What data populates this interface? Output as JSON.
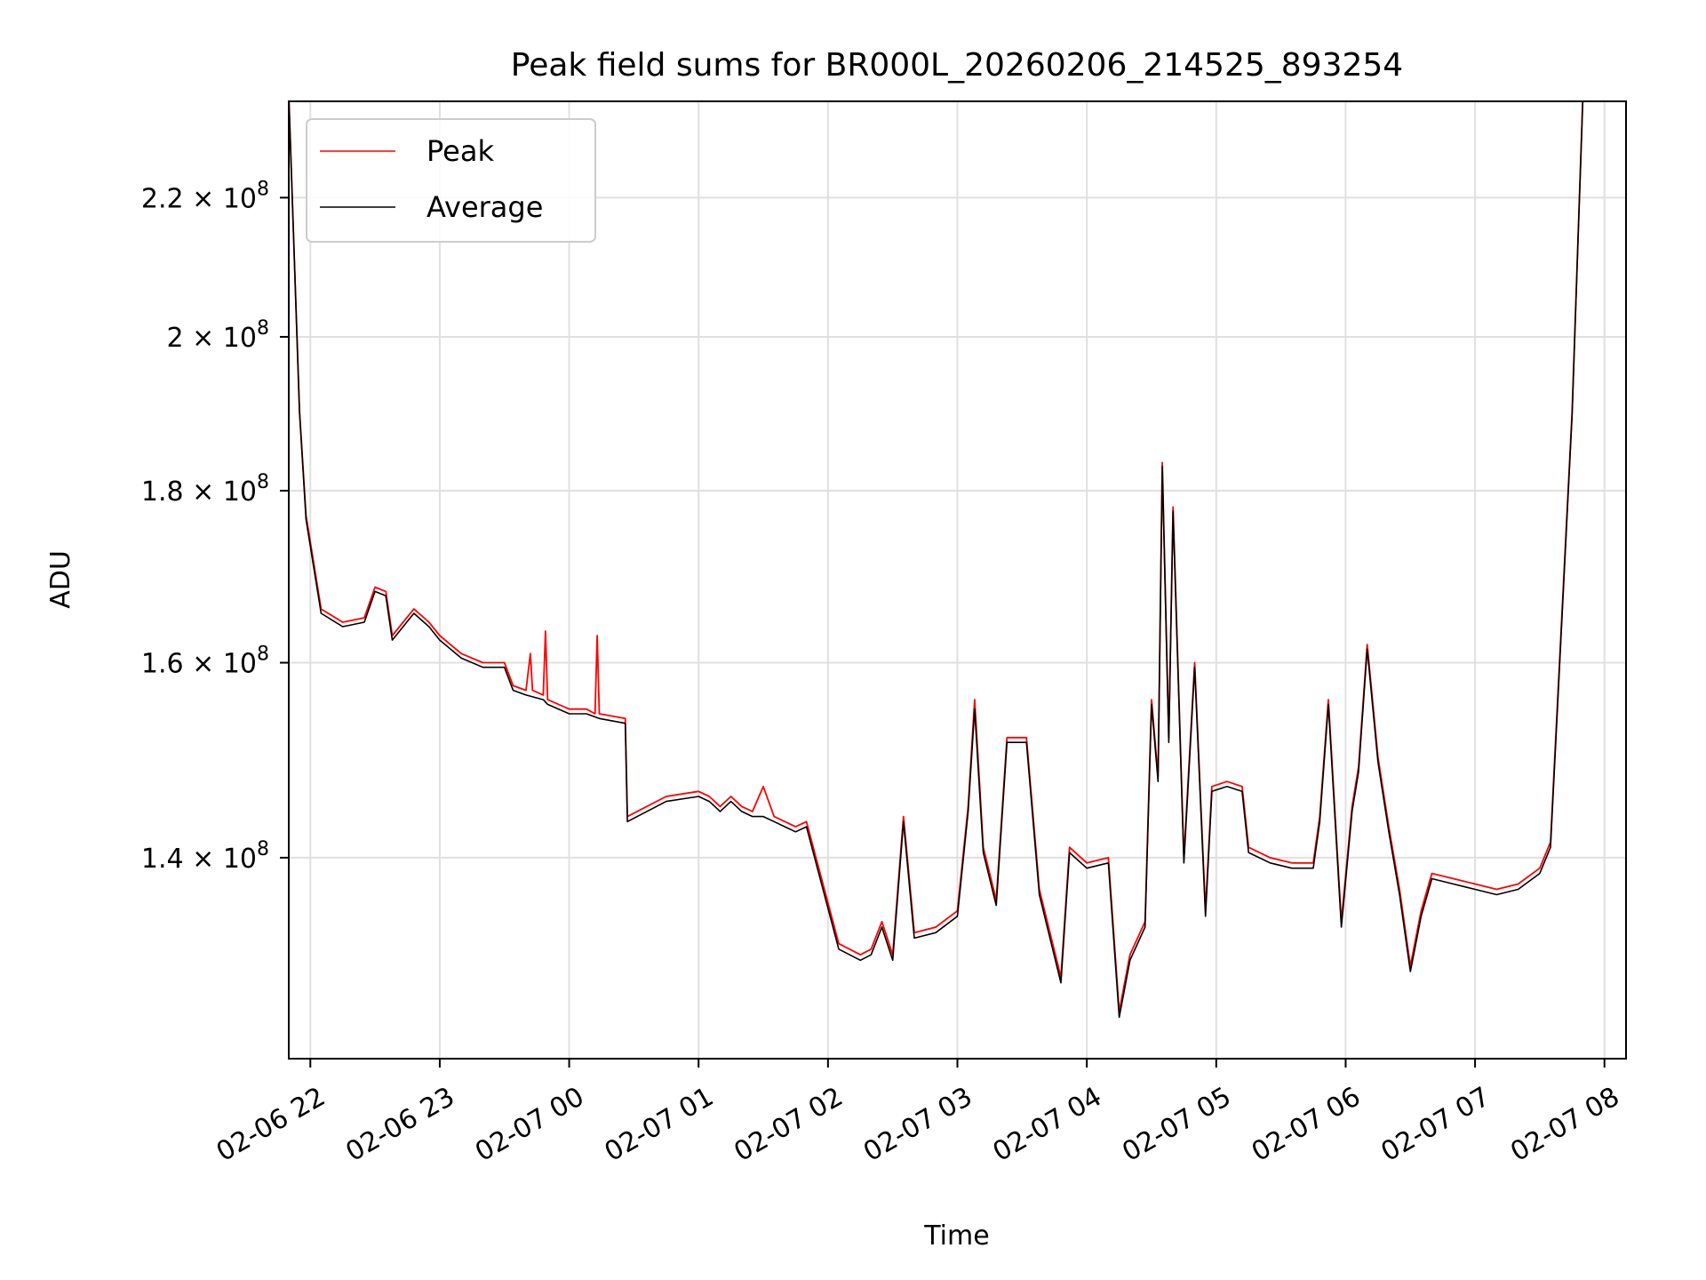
{
  "chart_data": {
    "type": "line",
    "title": "Peak field sums for BR000L_20260206_214525_893254",
    "xlabel": "Time",
    "ylabel": "ADU",
    "yscale": "log",
    "grid": true,
    "legend_placement": "top-left",
    "x_tick_labels": [
      "02-06 22",
      "02-06 23",
      "02-07 00",
      "02-07 01",
      "02-07 02",
      "02-07 03",
      "02-07 04",
      "02-07 05",
      "02-07 06",
      "02-07 07",
      "02-07 08"
    ],
    "x_ticks": [
      "2026-02-06 22:00",
      "2026-02-06 23:00",
      "2026-02-07 00:00",
      "2026-02-07 01:00",
      "2026-02-07 02:00",
      "2026-02-07 03:00",
      "2026-02-07 04:00",
      "2026-02-07 05:00",
      "2026-02-07 06:00",
      "2026-02-07 07:00",
      "2026-02-07 08:00"
    ],
    "xlim": [
      "2026-02-06 21:50",
      "2026-02-07 08:10"
    ],
    "y_ticks": [
      {
        "value": 140000000,
        "mantissa": "1.4",
        "base": "10",
        "exp": "8"
      },
      {
        "value": 160000000,
        "mantissa": "1.6",
        "base": "10",
        "exp": "8"
      },
      {
        "value": 180000000,
        "mantissa": "1.8",
        "base": "10",
        "exp": "8"
      },
      {
        "value": 200000000,
        "mantissa": "2",
        "base": "10",
        "exp": "8"
      },
      {
        "value": 220000000,
        "mantissa": "2.2",
        "base": "10",
        "exp": "8"
      }
    ],
    "ylim": [
      122000000,
      235000000
    ],
    "colors": {
      "peak": "#ff0000",
      "average": "#000000",
      "grid": "#e0e0e0"
    },
    "series": [
      {
        "name": "Peak",
        "color": "#ff0000",
        "points": [
          [
            "2026-02-06 21:50",
            236000000
          ],
          [
            "2026-02-06 21:55",
            190000000
          ],
          [
            "2026-02-06 21:58",
            177000000
          ],
          [
            "2026-02-06 22:05",
            166000000
          ],
          [
            "2026-02-06 22:15",
            164500000
          ],
          [
            "2026-02-06 22:25",
            165000000
          ],
          [
            "2026-02-06 22:30",
            168500000
          ],
          [
            "2026-02-06 22:35",
            168000000
          ],
          [
            "2026-02-06 22:38",
            163000000
          ],
          [
            "2026-02-06 22:48",
            166000000
          ],
          [
            "2026-02-06 22:55",
            164500000
          ],
          [
            "2026-02-06 23:00",
            163000000
          ],
          [
            "2026-02-06 23:10",
            161000000
          ],
          [
            "2026-02-06 23:20",
            160000000
          ],
          [
            "2026-02-06 23:30",
            160000000
          ],
          [
            "2026-02-06 23:34",
            157500000
          ],
          [
            "2026-02-06 23:40",
            157000000
          ],
          [
            "2026-02-06 23:42",
            161000000
          ],
          [
            "2026-02-06 23:43",
            157000000
          ],
          [
            "2026-02-06 23:48",
            156500000
          ],
          [
            "2026-02-06 23:49",
            163500000
          ],
          [
            "2026-02-06 23:50",
            156000000
          ],
          [
            "2026-02-07 00:00",
            155000000
          ],
          [
            "2026-02-07 00:08",
            155000000
          ],
          [
            "2026-02-07 00:12",
            154500000
          ],
          [
            "2026-02-07 00:13",
            163000000
          ],
          [
            "2026-02-07 00:14",
            154500000
          ],
          [
            "2026-02-07 00:26",
            154000000
          ],
          [
            "2026-02-07 00:27",
            144000000
          ],
          [
            "2026-02-07 00:45",
            146000000
          ],
          [
            "2026-02-07 01:00",
            146500000
          ],
          [
            "2026-02-07 01:05",
            146000000
          ],
          [
            "2026-02-07 01:10",
            145000000
          ],
          [
            "2026-02-07 01:15",
            146000000
          ],
          [
            "2026-02-07 01:20",
            145000000
          ],
          [
            "2026-02-07 01:25",
            144500000
          ],
          [
            "2026-02-07 01:30",
            147000000
          ],
          [
            "2026-02-07 01:35",
            144000000
          ],
          [
            "2026-02-07 01:40",
            143500000
          ],
          [
            "2026-02-07 01:45",
            143000000
          ],
          [
            "2026-02-07 01:50",
            143500000
          ],
          [
            "2026-02-07 02:05",
            132000000
          ],
          [
            "2026-02-07 02:15",
            131000000
          ],
          [
            "2026-02-07 02:20",
            131500000
          ],
          [
            "2026-02-07 02:25",
            134000000
          ],
          [
            "2026-02-07 02:30",
            131000000
          ],
          [
            "2026-02-07 02:35",
            144000000
          ],
          [
            "2026-02-07 02:40",
            133000000
          ],
          [
            "2026-02-07 02:50",
            133500000
          ],
          [
            "2026-02-07 03:00",
            135000000
          ],
          [
            "2026-02-07 03:05",
            145000000
          ],
          [
            "2026-02-07 03:08",
            156000000
          ],
          [
            "2026-02-07 03:12",
            141000000
          ],
          [
            "2026-02-07 03:18",
            136000000
          ],
          [
            "2026-02-07 03:23",
            152000000
          ],
          [
            "2026-02-07 03:32",
            152000000
          ],
          [
            "2026-02-07 03:38",
            137000000
          ],
          [
            "2026-02-07 03:48",
            129000000
          ],
          [
            "2026-02-07 03:52",
            141000000
          ],
          [
            "2026-02-07 04:00",
            139500000
          ],
          [
            "2026-02-07 04:10",
            140000000
          ],
          [
            "2026-02-07 04:15",
            126000000
          ],
          [
            "2026-02-07 04:20",
            131000000
          ],
          [
            "2026-02-07 04:27",
            134000000
          ],
          [
            "2026-02-07 04:30",
            156000000
          ],
          [
            "2026-02-07 04:33",
            148000000
          ],
          [
            "2026-02-07 04:35",
            183500000
          ],
          [
            "2026-02-07 04:38",
            152000000
          ],
          [
            "2026-02-07 04:40",
            178000000
          ],
          [
            "2026-02-07 04:45",
            140000000
          ],
          [
            "2026-02-07 04:50",
            160000000
          ],
          [
            "2026-02-07 04:55",
            135000000
          ],
          [
            "2026-02-07 04:58",
            147000000
          ],
          [
            "2026-02-07 05:05",
            147500000
          ],
          [
            "2026-02-07 05:12",
            147000000
          ],
          [
            "2026-02-07 05:15",
            141000000
          ],
          [
            "2026-02-07 05:25",
            140000000
          ],
          [
            "2026-02-07 05:35",
            139500000
          ],
          [
            "2026-02-07 05:45",
            139500000
          ],
          [
            "2026-02-07 05:48",
            144000000
          ],
          [
            "2026-02-07 05:52",
            156000000
          ],
          [
            "2026-02-07 05:58",
            134000000
          ],
          [
            "2026-02-07 06:03",
            145000000
          ],
          [
            "2026-02-07 06:06",
            149000000
          ],
          [
            "2026-02-07 06:10",
            162000000
          ],
          [
            "2026-02-07 06:15",
            150000000
          ],
          [
            "2026-02-07 06:20",
            143000000
          ],
          [
            "2026-02-07 06:25",
            137000000
          ],
          [
            "2026-02-07 06:30",
            130000000
          ],
          [
            "2026-02-07 06:35",
            135000000
          ],
          [
            "2026-02-07 06:40",
            138500000
          ],
          [
            "2026-02-07 06:50",
            138000000
          ],
          [
            "2026-02-07 07:00",
            137500000
          ],
          [
            "2026-02-07 07:10",
            137000000
          ],
          [
            "2026-02-07 07:20",
            137500000
          ],
          [
            "2026-02-07 07:30",
            139000000
          ],
          [
            "2026-02-07 07:35",
            141500000
          ],
          [
            "2026-02-07 07:45",
            190000000
          ],
          [
            "2026-02-07 07:50",
            236000000
          ]
        ]
      },
      {
        "name": "Average",
        "color": "#000000",
        "points": [
          [
            "2026-02-06 21:50",
            236000000
          ],
          [
            "2026-02-06 21:55",
            190000000
          ],
          [
            "2026-02-06 21:58",
            176500000
          ],
          [
            "2026-02-06 22:05",
            165500000
          ],
          [
            "2026-02-06 22:15",
            164000000
          ],
          [
            "2026-02-06 22:25",
            164500000
          ],
          [
            "2026-02-06 22:30",
            168000000
          ],
          [
            "2026-02-06 22:35",
            167500000
          ],
          [
            "2026-02-06 22:38",
            162500000
          ],
          [
            "2026-02-06 22:48",
            165500000
          ],
          [
            "2026-02-06 22:55",
            164000000
          ],
          [
            "2026-02-06 23:00",
            162500000
          ],
          [
            "2026-02-06 23:10",
            160500000
          ],
          [
            "2026-02-06 23:20",
            159500000
          ],
          [
            "2026-02-06 23:30",
            159500000
          ],
          [
            "2026-02-06 23:34",
            157000000
          ],
          [
            "2026-02-06 23:40",
            156500000
          ],
          [
            "2026-02-06 23:48",
            156000000
          ],
          [
            "2026-02-06 23:50",
            155500000
          ],
          [
            "2026-02-07 00:00",
            154500000
          ],
          [
            "2026-02-07 00:08",
            154500000
          ],
          [
            "2026-02-07 00:14",
            154000000
          ],
          [
            "2026-02-07 00:26",
            153500000
          ],
          [
            "2026-02-07 00:27",
            143500000
          ],
          [
            "2026-02-07 00:45",
            145500000
          ],
          [
            "2026-02-07 01:00",
            146000000
          ],
          [
            "2026-02-07 01:05",
            145500000
          ],
          [
            "2026-02-07 01:10",
            144500000
          ],
          [
            "2026-02-07 01:15",
            145500000
          ],
          [
            "2026-02-07 01:20",
            144500000
          ],
          [
            "2026-02-07 01:25",
            144000000
          ],
          [
            "2026-02-07 01:30",
            144000000
          ],
          [
            "2026-02-07 01:35",
            143500000
          ],
          [
            "2026-02-07 01:40",
            143000000
          ],
          [
            "2026-02-07 01:45",
            142500000
          ],
          [
            "2026-02-07 01:50",
            143000000
          ],
          [
            "2026-02-07 02:05",
            131500000
          ],
          [
            "2026-02-07 02:15",
            130500000
          ],
          [
            "2026-02-07 02:20",
            131000000
          ],
          [
            "2026-02-07 02:25",
            133500000
          ],
          [
            "2026-02-07 02:30",
            130500000
          ],
          [
            "2026-02-07 02:35",
            143500000
          ],
          [
            "2026-02-07 02:40",
            132500000
          ],
          [
            "2026-02-07 02:50",
            133000000
          ],
          [
            "2026-02-07 03:00",
            134500000
          ],
          [
            "2026-02-07 03:05",
            144500000
          ],
          [
            "2026-02-07 03:08",
            155000000
          ],
          [
            "2026-02-07 03:12",
            140500000
          ],
          [
            "2026-02-07 03:18",
            135500000
          ],
          [
            "2026-02-07 03:23",
            151500000
          ],
          [
            "2026-02-07 03:32",
            151500000
          ],
          [
            "2026-02-07 03:38",
            136500000
          ],
          [
            "2026-02-07 03:48",
            128500000
          ],
          [
            "2026-02-07 03:52",
            140500000
          ],
          [
            "2026-02-07 04:00",
            139000000
          ],
          [
            "2026-02-07 04:10",
            139500000
          ],
          [
            "2026-02-07 04:15",
            125500000
          ],
          [
            "2026-02-07 04:20",
            130500000
          ],
          [
            "2026-02-07 04:27",
            133500000
          ],
          [
            "2026-02-07 04:30",
            155500000
          ],
          [
            "2026-02-07 04:33",
            147500000
          ],
          [
            "2026-02-07 04:35",
            183000000
          ],
          [
            "2026-02-07 04:38",
            151500000
          ],
          [
            "2026-02-07 04:40",
            177500000
          ],
          [
            "2026-02-07 04:45",
            139500000
          ],
          [
            "2026-02-07 04:50",
            159500000
          ],
          [
            "2026-02-07 04:55",
            134500000
          ],
          [
            "2026-02-07 04:58",
            146500000
          ],
          [
            "2026-02-07 05:05",
            147000000
          ],
          [
            "2026-02-07 05:12",
            146500000
          ],
          [
            "2026-02-07 05:15",
            140500000
          ],
          [
            "2026-02-07 05:25",
            139500000
          ],
          [
            "2026-02-07 05:35",
            139000000
          ],
          [
            "2026-02-07 05:45",
            139000000
          ],
          [
            "2026-02-07 05:48",
            143500000
          ],
          [
            "2026-02-07 05:52",
            155500000
          ],
          [
            "2026-02-07 05:58",
            133500000
          ],
          [
            "2026-02-07 06:03",
            144500000
          ],
          [
            "2026-02-07 06:06",
            148500000
          ],
          [
            "2026-02-07 06:10",
            161500000
          ],
          [
            "2026-02-07 06:15",
            149500000
          ],
          [
            "2026-02-07 06:20",
            142500000
          ],
          [
            "2026-02-07 06:25",
            136500000
          ],
          [
            "2026-02-07 06:30",
            129500000
          ],
          [
            "2026-02-07 06:35",
            134500000
          ],
          [
            "2026-02-07 06:40",
            138000000
          ],
          [
            "2026-02-07 06:50",
            137500000
          ],
          [
            "2026-02-07 07:00",
            137000000
          ],
          [
            "2026-02-07 07:10",
            136500000
          ],
          [
            "2026-02-07 07:20",
            137000000
          ],
          [
            "2026-02-07 07:30",
            138500000
          ],
          [
            "2026-02-07 07:35",
            141000000
          ],
          [
            "2026-02-07 07:45",
            189500000
          ],
          [
            "2026-02-07 07:50",
            236000000
          ]
        ]
      }
    ]
  }
}
